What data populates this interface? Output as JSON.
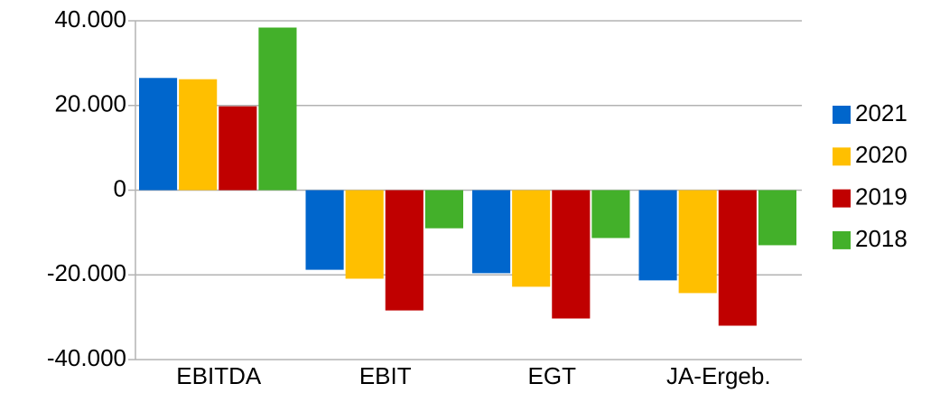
{
  "chart_data": {
    "type": "bar",
    "categories": [
      "EBITDA",
      "EBIT",
      "EGT",
      "JA-Ergeb."
    ],
    "series": [
      {
        "name": "2021",
        "color": "#0066cc",
        "values": [
          26500,
          -18800,
          -19600,
          -21300
        ]
      },
      {
        "name": "2020",
        "color": "#ffbf00",
        "values": [
          26200,
          -20900,
          -22800,
          -24300
        ]
      },
      {
        "name": "2019",
        "color": "#c00000",
        "values": [
          19800,
          -28400,
          -30300,
          -32000
        ]
      },
      {
        "name": "2018",
        "color": "#43b02a",
        "values": [
          38400,
          -9000,
          -11300,
          -13000
        ]
      }
    ],
    "ylim": [
      -40000,
      40000
    ],
    "yticks": [
      {
        "value": -40000,
        "label": "-40.000"
      },
      {
        "value": -20000,
        "label": "-20.000"
      },
      0,
      {
        "value": 20000,
        "label": "20.000"
      },
      {
        "value": 40000,
        "label": "40.000"
      }
    ],
    "grid": true,
    "legend": "right"
  }
}
